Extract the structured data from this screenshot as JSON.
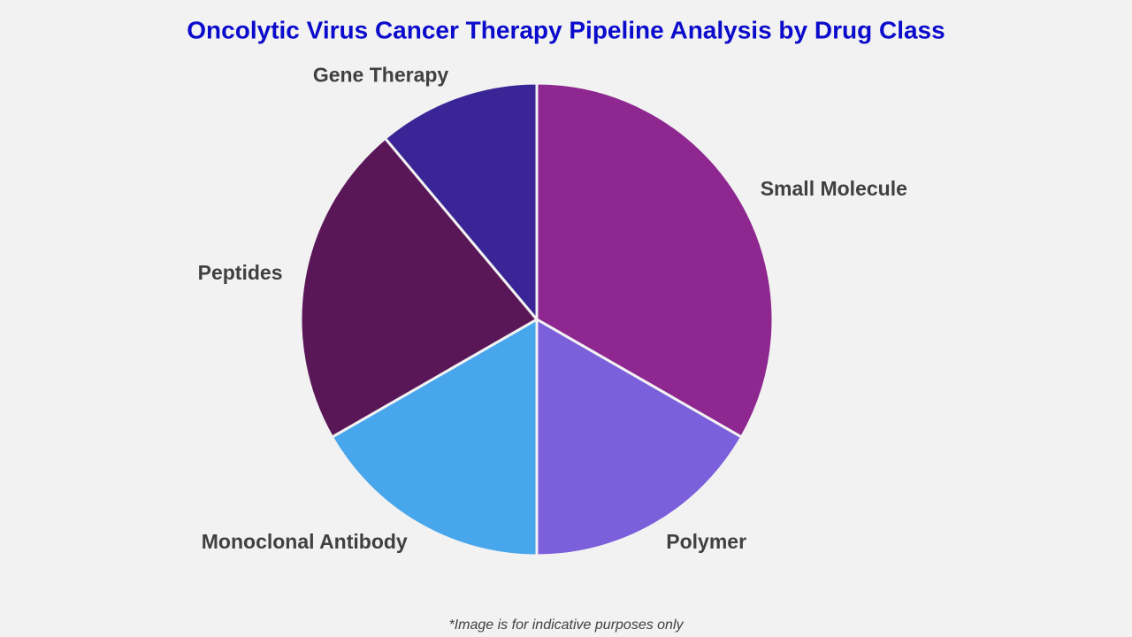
{
  "chart_data": {
    "type": "pie",
    "title": "Oncolytic Virus Cancer Therapy Pipeline Analysis by Drug Class",
    "categories": [
      "Small Molecule",
      "Polymer",
      "Monoclonal Antibody",
      "Peptides",
      "Gene Therapy"
    ],
    "values": [
      33.3,
      16.7,
      16.7,
      22.2,
      11.1
    ],
    "colors": [
      "#8e278f",
      "#7b5fdb",
      "#47a6ec",
      "#5a1758",
      "#3a2596"
    ],
    "note": "*Image is for indicative purposes only"
  }
}
